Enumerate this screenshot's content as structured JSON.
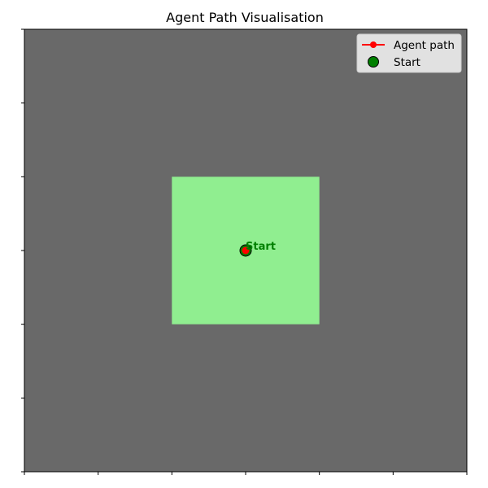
{
  "chart_data": {
    "type": "grid-map",
    "title": "Agent Path Visualisation",
    "grid": {
      "rows": 6,
      "cols": 6,
      "xlim": [
        0,
        6
      ],
      "ylim": [
        0,
        6
      ],
      "background_color": "#696969",
      "visited_cells": [
        {
          "col": 2,
          "row": 2
        },
        {
          "col": 3,
          "row": 2
        },
        {
          "col": 2,
          "row": 3
        },
        {
          "col": 3,
          "row": 3
        }
      ],
      "visited_color": "#90ee90"
    },
    "series": [
      {
        "name": "Agent path",
        "color": "#ff0000",
        "points": [
          [
            3,
            3
          ]
        ]
      },
      {
        "name": "Start",
        "color": "#008000",
        "points": [
          [
            3,
            3
          ]
        ]
      }
    ],
    "annotations": [
      {
        "text": "Start",
        "x": 3,
        "y": 3,
        "color": "#008000"
      }
    ],
    "legend_position": "top-right",
    "tick_labels_shown": false
  }
}
